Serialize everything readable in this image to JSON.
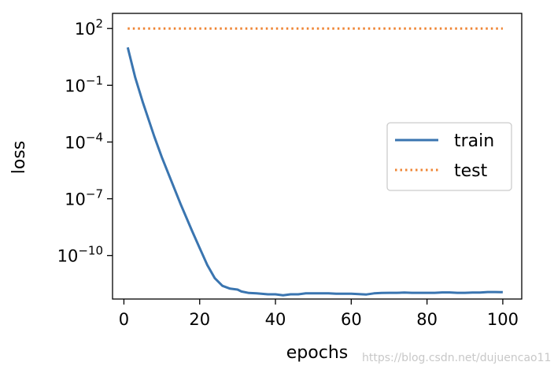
{
  "chart_data": {
    "type": "line",
    "xlabel": "epochs",
    "ylabel": "loss",
    "xlim": [
      -3,
      105
    ],
    "ylim_log10": [
      -12.3,
      2.8
    ],
    "yscale": "log",
    "x_ticks": [
      0,
      20,
      40,
      60,
      80,
      100
    ],
    "x_tick_labels": [
      "0",
      "20",
      "40",
      "60",
      "80",
      "100"
    ],
    "y_tick_exponents": [
      2,
      -1,
      -4,
      -7,
      -10
    ],
    "y_tick_labels": [
      "10",
      "10",
      "10",
      "10",
      "10"
    ],
    "y_tick_superscripts": [
      "2",
      "−1",
      "−4",
      "−7",
      "−10"
    ],
    "grid": false,
    "legend_position": "center-right",
    "series": [
      {
        "name": "train",
        "color": "#3a75b0",
        "style": "solid",
        "x": [
          1,
          3,
          5,
          8,
          10,
          12,
          15,
          18,
          20,
          22,
          24,
          26,
          28,
          30,
          31,
          33,
          35,
          38,
          40,
          42,
          44,
          46,
          48,
          50,
          52,
          54,
          56,
          58,
          60,
          62,
          64,
          66,
          68,
          70,
          72,
          74,
          76,
          78,
          80,
          82,
          84,
          86,
          88,
          90,
          92,
          94,
          96,
          98,
          100
        ],
        "log10_y": [
          1.0,
          -0.6,
          -1.9,
          -3.7,
          -4.8,
          -5.8,
          -7.3,
          -8.7,
          -9.6,
          -10.5,
          -11.2,
          -11.6,
          -11.75,
          -11.8,
          -11.9,
          -11.98,
          -12.0,
          -12.05,
          -12.05,
          -12.1,
          -12.05,
          -12.05,
          -12.0,
          -12.0,
          -12.0,
          -12.0,
          -12.02,
          -12.02,
          -12.02,
          -12.04,
          -12.06,
          -12.0,
          -11.98,
          -11.97,
          -11.97,
          -11.96,
          -11.97,
          -11.97,
          -11.97,
          -11.97,
          -11.95,
          -11.95,
          -11.97,
          -11.97,
          -11.96,
          -11.96,
          -11.93,
          -11.93,
          -11.94
        ]
      },
      {
        "name": "test",
        "color": "#ef8636",
        "style": "dotted",
        "x": [
          1,
          100
        ],
        "log10_y": [
          2.0,
          2.0
        ]
      }
    ]
  },
  "watermark": "https://blog.csdn.net/dujuencao11"
}
